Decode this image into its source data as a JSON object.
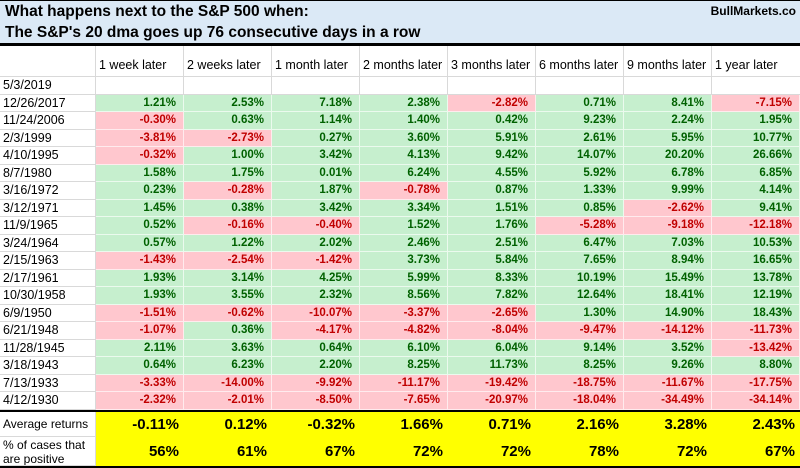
{
  "page": {
    "title_line1": "What happens next to the S&P 500 when:",
    "title_line2": "The S&P's 20 dma goes up 76 consecutive days in a row",
    "brand": "BullMarkets.co"
  },
  "colors": {
    "title_bg": "#DBE9F6",
    "positive_bg": "#C6EFCE",
    "positive_text": "#006100",
    "negative_bg": "#FFC7CE",
    "negative_text": "#C00000",
    "summary_bg": "#FFFF00",
    "gridline": "#D9D9D9"
  },
  "chart_data": {
    "type": "table",
    "title": "What happens next to the S&P 500 when: The S&P's 20 dma goes up 76 consecutive days in a row",
    "columns": [
      "1 week later",
      "2 weeks later",
      "1 month later",
      "2 months later",
      "3 months later",
      "6 months later",
      "9 months later",
      "1 year later"
    ],
    "rows": [
      {
        "date": "5/3/2019",
        "values": [
          null,
          null,
          null,
          null,
          null,
          null,
          null,
          null
        ]
      },
      {
        "date": "12/26/2017",
        "values": [
          "1.21%",
          "2.53%",
          "7.18%",
          "2.38%",
          "-2.82%",
          "0.71%",
          "8.41%",
          "-7.15%"
        ]
      },
      {
        "date": "11/24/2006",
        "values": [
          "-0.30%",
          "0.63%",
          "1.14%",
          "1.40%",
          "0.42%",
          "9.23%",
          "2.24%",
          "1.95%"
        ]
      },
      {
        "date": "2/3/1999",
        "values": [
          "-3.81%",
          "-2.73%",
          "0.27%",
          "3.60%",
          "5.91%",
          "2.61%",
          "5.95%",
          "10.77%"
        ]
      },
      {
        "date": "4/10/1995",
        "values": [
          "-0.32%",
          "1.00%",
          "3.42%",
          "4.13%",
          "9.42%",
          "14.07%",
          "20.20%",
          "26.66%"
        ]
      },
      {
        "date": "8/7/1980",
        "values": [
          "1.58%",
          "1.75%",
          "0.01%",
          "6.24%",
          "4.55%",
          "5.92%",
          "6.78%",
          "6.85%"
        ]
      },
      {
        "date": "3/16/1972",
        "values": [
          "0.23%",
          "-0.28%",
          "1.87%",
          "-0.78%",
          "0.87%",
          "1.33%",
          "9.99%",
          "4.14%"
        ]
      },
      {
        "date": "3/12/1971",
        "values": [
          "1.45%",
          "0.38%",
          "3.42%",
          "3.34%",
          "1.51%",
          "0.85%",
          "-2.62%",
          "9.41%"
        ]
      },
      {
        "date": "11/9/1965",
        "values": [
          "0.52%",
          "-0.16%",
          "-0.40%",
          "1.52%",
          "1.76%",
          "-5.28%",
          "-9.18%",
          "-12.18%"
        ]
      },
      {
        "date": "3/24/1964",
        "values": [
          "0.57%",
          "1.22%",
          "2.02%",
          "2.46%",
          "2.51%",
          "6.47%",
          "7.03%",
          "10.53%"
        ]
      },
      {
        "date": "2/15/1963",
        "values": [
          "-1.43%",
          "-2.54%",
          "-1.42%",
          "3.73%",
          "5.84%",
          "7.65%",
          "8.94%",
          "16.65%"
        ]
      },
      {
        "date": "2/17/1961",
        "values": [
          "1.93%",
          "3.14%",
          "4.25%",
          "5.99%",
          "8.33%",
          "10.19%",
          "15.49%",
          "13.78%"
        ]
      },
      {
        "date": "10/30/1958",
        "values": [
          "1.93%",
          "3.55%",
          "2.32%",
          "8.56%",
          "7.82%",
          "12.64%",
          "18.41%",
          "12.19%"
        ]
      },
      {
        "date": "6/9/1950",
        "values": [
          "-1.51%",
          "-0.62%",
          "-10.07%",
          "-3.37%",
          "-2.65%",
          "1.30%",
          "14.90%",
          "18.43%"
        ]
      },
      {
        "date": "6/21/1948",
        "values": [
          "-1.07%",
          "0.36%",
          "-4.17%",
          "-4.82%",
          "-8.04%",
          "-9.47%",
          "-14.12%",
          "-11.73%"
        ]
      },
      {
        "date": "11/28/1945",
        "values": [
          "2.11%",
          "3.63%",
          "0.64%",
          "6.10%",
          "6.04%",
          "9.14%",
          "3.52%",
          "-13.42%"
        ]
      },
      {
        "date": "3/18/1943",
        "values": [
          "0.64%",
          "6.23%",
          "2.20%",
          "8.25%",
          "11.73%",
          "8.25%",
          "9.26%",
          "8.80%"
        ]
      },
      {
        "date": "7/13/1933",
        "values": [
          "-3.33%",
          "-14.00%",
          "-9.92%",
          "-11.17%",
          "-19.42%",
          "-18.75%",
          "-11.67%",
          "-17.75%"
        ]
      },
      {
        "date": "4/12/1930",
        "values": [
          "-2.32%",
          "-2.01%",
          "-8.50%",
          "-7.65%",
          "-20.97%",
          "-18.04%",
          "-34.49%",
          "-34.14%"
        ]
      }
    ],
    "summary": {
      "average_label": "Average returns",
      "average_values": [
        "-0.11%",
        "0.12%",
        "-0.32%",
        "1.66%",
        "0.71%",
        "2.16%",
        "3.28%",
        "2.43%"
      ],
      "positive_label": "% of cases that are positive",
      "positive_values": [
        "56%",
        "61%",
        "67%",
        "72%",
        "72%",
        "78%",
        "72%",
        "67%"
      ]
    },
    "layout_hints": {
      "conditional_formatting": "negative values red fill, non-negative green fill",
      "summary_rows_fill": "yellow",
      "first_row_blank": "5/3/2019 has no values yet"
    }
  }
}
